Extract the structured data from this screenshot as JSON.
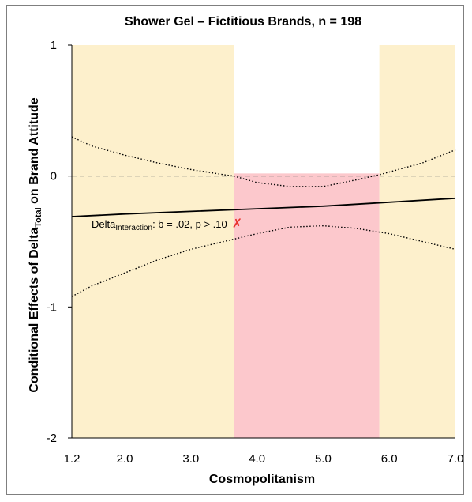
{
  "chart_data": {
    "type": "line",
    "title": "Shower Gel – Fictitious Brands, n = 198",
    "xlabel": "Cosmopolitanism",
    "ylabel": {
      "prefix": "Conditional Effects of Delta",
      "subscript": "Total",
      "suffix": " on Brand Attitude"
    },
    "xlim": [
      1.2,
      7.0
    ],
    "ylim": [
      -2,
      1
    ],
    "x_ticks": [
      {
        "value": 1.2,
        "label": "1.2"
      },
      {
        "value": 2.0,
        "label": "2.0"
      },
      {
        "value": 3.0,
        "label": "3.0"
      },
      {
        "value": 4.0,
        "label": "4.0"
      },
      {
        "value": 5.0,
        "label": "5.0"
      },
      {
        "value": 6.0,
        "label": "6.0"
      },
      {
        "value": 7.0,
        "label": "7.0"
      }
    ],
    "y_ticks": [
      {
        "value": 1,
        "label": "1"
      },
      {
        "value": 0,
        "label": "0"
      },
      {
        "value": -1,
        "label": "-1"
      },
      {
        "value": -2,
        "label": "-2"
      }
    ],
    "regions": [
      {
        "name": "significant-low",
        "x_from": 1.2,
        "x_to": 3.65,
        "y_from": -2,
        "y_to": 1,
        "color": "#fdf0cc"
      },
      {
        "name": "not-significant",
        "x_from": 3.65,
        "x_to": 5.85,
        "y_from": -2,
        "y_to": 0.02,
        "color": "#fcc8cc"
      },
      {
        "name": "significant-high",
        "x_from": 5.85,
        "x_to": 7.0,
        "y_from": -2,
        "y_to": 1,
        "color": "#fdf0cc"
      }
    ],
    "reference_line": {
      "y": 0,
      "style": "dashed",
      "color": "#7f7f7f"
    },
    "series": [
      {
        "style": "solid",
        "x": [
          1.2,
          2.0,
          3.0,
          4.0,
          5.0,
          6.0,
          7.0
        ],
        "y": [
          -0.31,
          -0.29,
          -0.27,
          -0.25,
          -0.23,
          -0.2,
          -0.17
        ]
      },
      {
        "style": "dotted",
        "x": [
          1.2,
          1.5,
          2.0,
          2.5,
          3.0,
          3.5,
          3.65,
          4.0,
          4.5,
          5.0,
          5.5,
          5.85,
          6.5,
          7.0
        ],
        "y": [
          0.3,
          0.23,
          0.16,
          0.1,
          0.05,
          0.01,
          0.0,
          -0.05,
          -0.08,
          -0.08,
          -0.03,
          0.01,
          0.1,
          0.2
        ]
      },
      {
        "style": "dotted",
        "x": [
          1.2,
          1.5,
          2.0,
          2.5,
          3.0,
          3.5,
          4.0,
          4.5,
          5.0,
          5.5,
          6.0,
          6.5,
          7.0
        ],
        "y": [
          -0.92,
          -0.84,
          -0.74,
          -0.64,
          -0.56,
          -0.5,
          -0.44,
          -0.39,
          -0.38,
          -0.4,
          -0.44,
          -0.5,
          -0.56
        ]
      }
    ],
    "annotation": {
      "prefix": "Delta",
      "subscript": "Interaction",
      "text": ": b = .02, p > .10",
      "marker": "✗",
      "marker_color": "#e8322c"
    },
    "grid": false,
    "legend": "none"
  }
}
